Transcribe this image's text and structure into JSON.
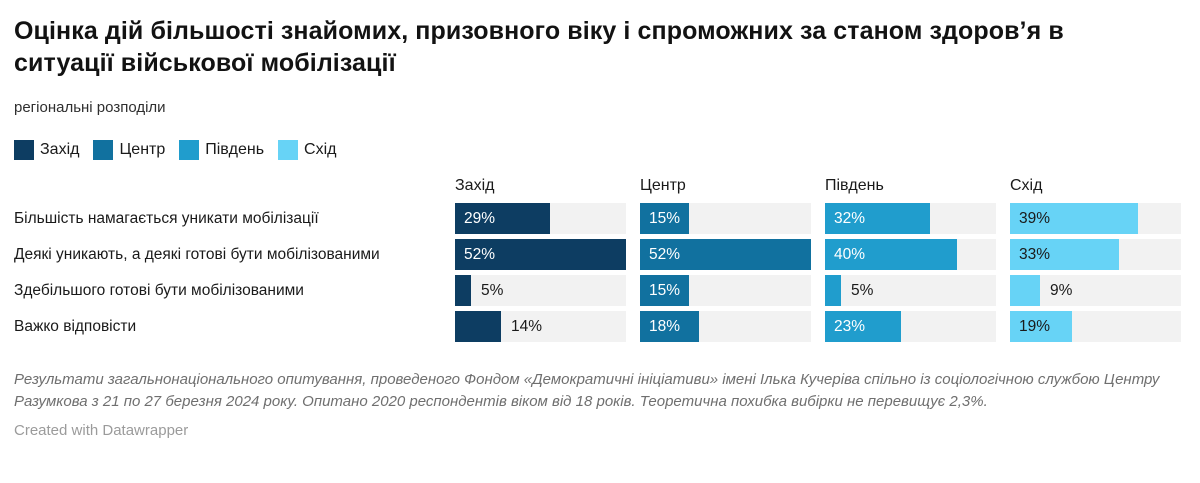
{
  "header": {
    "title": "Оцінка дій більшості знайомих, призовного віку і спроможних за станом здоров’я в ситуації військової мобілізації",
    "subtitle": "регіональні розподіли"
  },
  "chart_data": {
    "type": "bar",
    "orientation": "horizontal",
    "legend_position": "top",
    "grid": false,
    "value_suffix": "%",
    "xlim": [
      0,
      52
    ],
    "scale_max": 52,
    "track_color": "#f2f2f2",
    "outside_label_color": "#1a1a1a",
    "categories": [
      "Більшість намагається уникати мобілізації",
      "Деякі уникають, а деякі готові бути мобілізованими",
      "Здебільшого готові бути мобілізованими",
      "Важко відповісти"
    ],
    "series": [
      {
        "name": "Захід",
        "color": "#0d3d62",
        "label_color": "#ffffff",
        "values": [
          29,
          52,
          5,
          14
        ]
      },
      {
        "name": "Центр",
        "color": "#11719f",
        "label_color": "#ffffff",
        "values": [
          15,
          52,
          15,
          18
        ]
      },
      {
        "name": "Південь",
        "color": "#209dcd",
        "label_color": "#ffffff",
        "values": [
          32,
          40,
          5,
          23
        ]
      },
      {
        "name": "Схід",
        "color": "#67d3f6",
        "label_color": "#1a1a1a",
        "values": [
          39,
          33,
          9,
          19
        ]
      }
    ]
  },
  "footer": {
    "note": "Результати загальнонаціонального опитування, проведеного Фондом «Демократичні ініціативи» імені Ілька Кучеріва спільно із соціологічною службою Центру Разумкова з 21 по 27 березня 2024 року. Опитано 2020 респондентів віком від 18 років. Теоретична похибка вибірки не перевищує 2,3%.",
    "attribution": "Created with Datawrapper"
  }
}
